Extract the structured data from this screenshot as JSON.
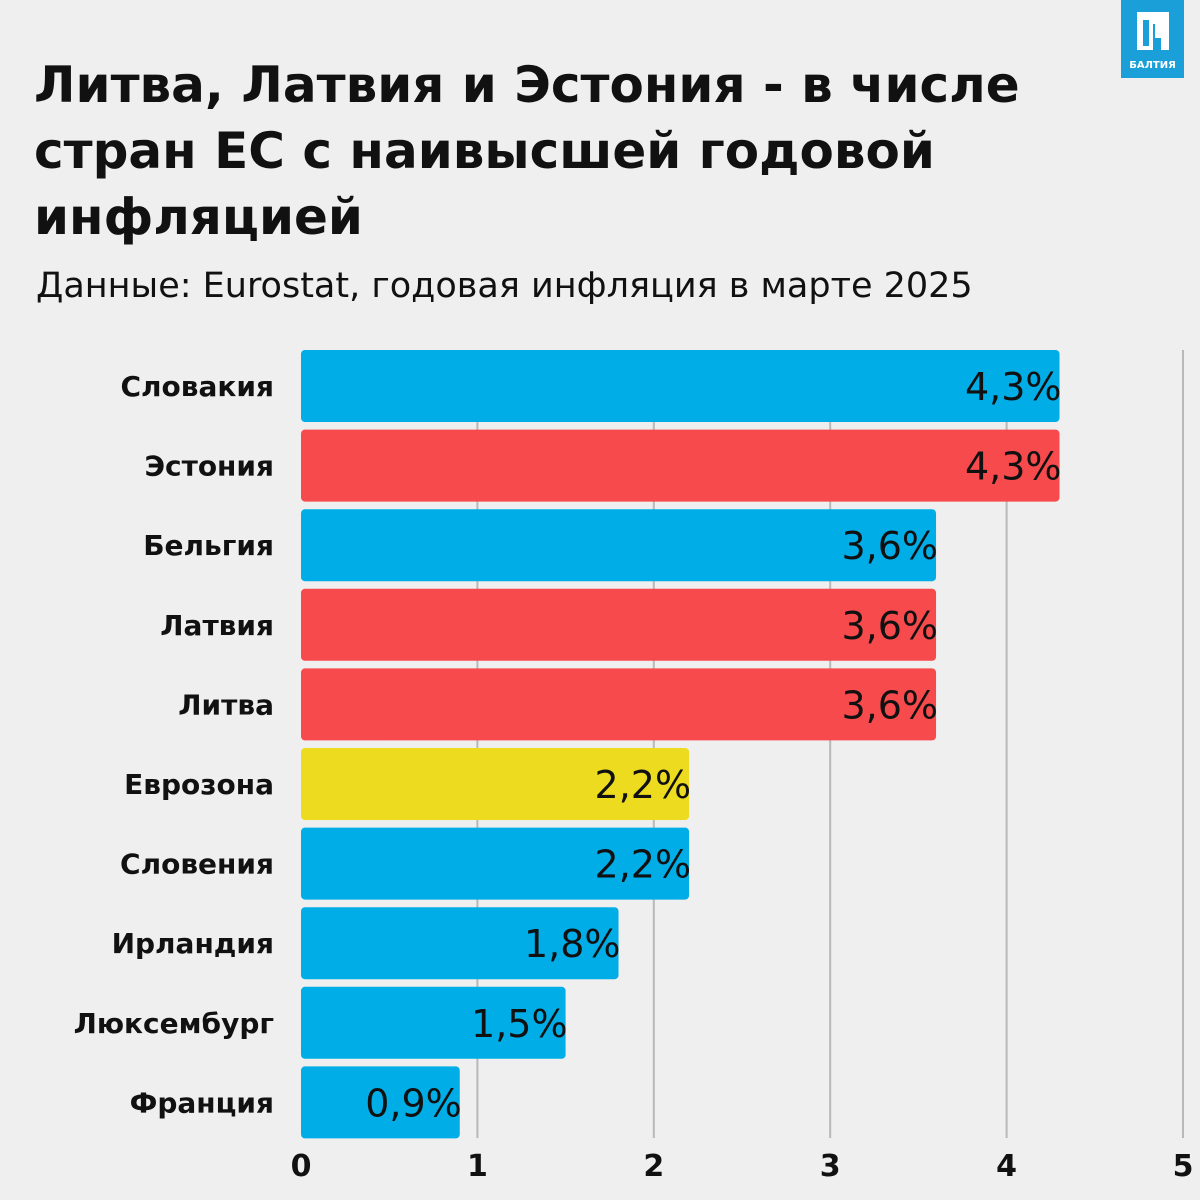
{
  "header": {
    "title": "Литва, Латвия и Эстония - в числе стран ЕС с наивысшей годовой инфляцией",
    "subtitle": "Данные: Eurostat, годовая инфляция в марте 2025",
    "logo_text": "БАЛТИЯ"
  },
  "chart_data": {
    "type": "bar",
    "orientation": "horizontal",
    "title": "Литва, Латвия и Эстония - в числе стран ЕС с наивысшей годовой инфляцией",
    "subtitle": "Данные: Eurostat, годовая инфляция в марте 2025",
    "categories": [
      "Словакия",
      "Эстония",
      "Бельгия",
      "Латвия",
      "Литва",
      "Еврозона",
      "Словения",
      "Ирландия",
      "Люксембург",
      "Франция"
    ],
    "values": [
      4.3,
      4.3,
      3.6,
      3.6,
      3.6,
      2.2,
      2.2,
      1.8,
      1.5,
      0.9
    ],
    "labels": [
      "4,3%",
      "4,3%",
      "3,6%",
      "3,6%",
      "3,6%",
      "2,2%",
      "2,2%",
      "1,8%",
      "1,5%",
      "0,9%"
    ],
    "colors": [
      "#00ade6",
      "#f64a4c",
      "#00ade6",
      "#f64a4c",
      "#f64a4c",
      "#eddb1f",
      "#00ade6",
      "#00ade6",
      "#00ade6",
      "#00ade6"
    ],
    "xlim": [
      0,
      5
    ],
    "xticks": [
      "0",
      "1",
      "2",
      "3",
      "4",
      "5"
    ],
    "grid": true,
    "xlabel": "",
    "ylabel": ""
  }
}
